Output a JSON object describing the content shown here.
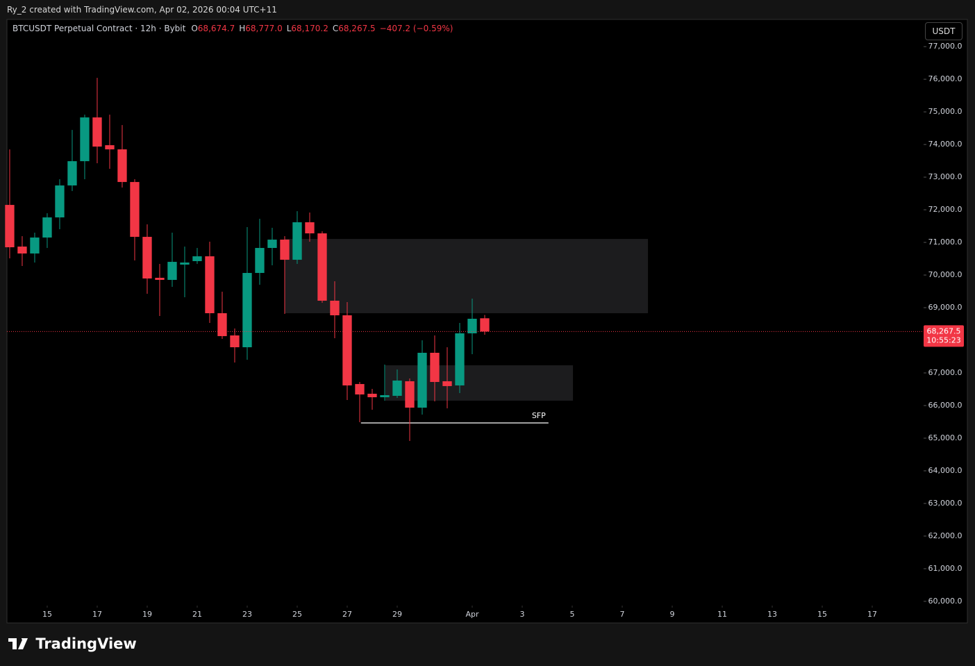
{
  "header": {
    "text": "Ry_2 created with TradingView.com, Apr 02, 2026 00:04 UTC+11"
  },
  "footer": {
    "logo": "TradingView"
  },
  "chart_data": {
    "type": "candlestick",
    "title": "BTCUSDT Perpetual Contract · 12h · Bybit",
    "ohlc_keys": [
      "O",
      "H",
      "L",
      "C"
    ],
    "ohlc_value_labels": [
      "68,674.7",
      "68,777.0",
      "68,170.2",
      "68,267.5"
    ],
    "change_label": "−407.2 (−0.59%)",
    "currency": "USDT",
    "categories": [
      null,
      null,
      null,
      null,
      null,
      null,
      null,
      null,
      null,
      null,
      null,
      null,
      null,
      null,
      null,
      null,
      null,
      null,
      null,
      null,
      null,
      null,
      null,
      null,
      null,
      null,
      null,
      null,
      null,
      null,
      null,
      null,
      null,
      null,
      null,
      null,
      null,
      null,
      null
    ],
    "open": [
      72149,
      70872,
      70660,
      71149,
      71766,
      72745,
      73489,
      74830,
      73979,
      73851,
      72851,
      71170,
      69915,
      69851,
      70319,
      70426,
      70574,
      68830,
      68149,
      67787,
      70064,
      70830,
      71085,
      70468,
      71617,
      71277,
      69213,
      68766,
      66660,
      66362,
      66255,
      66298,
      66745,
      65936,
      67617,
      66745,
      66617,
      68213,
      68674.7
    ],
    "high": [
      73851,
      71191,
      71298,
      71894,
      72936,
      74447,
      74915,
      76043,
      74915,
      74596,
      72936,
      71553,
      70340,
      71298,
      70872,
      70830,
      71021,
      69489,
      68362,
      71468,
      71723,
      71447,
      71191,
      71957,
      71915,
      71340,
      69809,
      69170,
      66723,
      66511,
      67255,
      67106,
      66830,
      68000,
      68149,
      67787,
      68532,
      69277,
      68777.0
    ],
    "low": [
      70511,
      70277,
      70383,
      70830,
      71404,
      72574,
      72936,
      73426,
      73255,
      72681,
      70447,
      69426,
      68745,
      69638,
      69319,
      70340,
      68532,
      68043,
      67319,
      67404,
      69702,
      70298,
      68808,
      70340,
      71021,
      69149,
      68064,
      66170,
      65489,
      65872,
      66149,
      66234,
      64915,
      65723,
      66128,
      65915,
      66383,
      67574,
      68170.2
    ],
    "close": [
      70851,
      70660,
      71149,
      71766,
      72745,
      73489,
      74830,
      73936,
      73851,
      72851,
      71170,
      69894,
      69851,
      70404,
      70383,
      70574,
      68830,
      68128,
      67787,
      70064,
      70830,
      71085,
      70468,
      71617,
      71277,
      69213,
      68766,
      66617,
      66340,
      66255,
      66319,
      66766,
      65936,
      67617,
      66723,
      66596,
      68213,
      68660,
      68267.5
    ],
    "up_color": "#089981",
    "down_color": "#f23645",
    "ylim": [
      59870,
      77790
    ],
    "yticks": [
      {
        "value": 60000,
        "label": "60,000.0"
      },
      {
        "value": 61000,
        "label": "61,000.0"
      },
      {
        "value": 62000,
        "label": "62,000.0"
      },
      {
        "value": 63000,
        "label": "63,000.0"
      },
      {
        "value": 64000,
        "label": "64,000.0"
      },
      {
        "value": 65000,
        "label": "65,000.0"
      },
      {
        "value": 66000,
        "label": "66,000.0"
      },
      {
        "value": 67000,
        "label": "67,000.0"
      },
      {
        "value": 68000,
        "label": "68,000.0"
      },
      {
        "value": 69000,
        "label": "69,000.0"
      },
      {
        "value": 70000,
        "label": "70,000.0"
      },
      {
        "value": 71000,
        "label": "71,000.0"
      },
      {
        "value": 72000,
        "label": "72,000.0"
      },
      {
        "value": 73000,
        "label": "73,000.0"
      },
      {
        "value": 74000,
        "label": "74,000.0"
      },
      {
        "value": 75000,
        "label": "75,000.0"
      },
      {
        "value": 76000,
        "label": "76,000.0"
      },
      {
        "value": 77000,
        "label": "77,000.0"
      }
    ],
    "xlim": [
      -0.22,
      73
    ],
    "xticks": [
      {
        "value": 3,
        "label": "15"
      },
      {
        "value": 7,
        "label": "17"
      },
      {
        "value": 11,
        "label": "19"
      },
      {
        "value": 15,
        "label": "21"
      },
      {
        "value": 19,
        "label": "23"
      },
      {
        "value": 23,
        "label": "25"
      },
      {
        "value": 27,
        "label": "27"
      },
      {
        "value": 31,
        "label": "29"
      },
      {
        "value": 37,
        "label": "Apr"
      },
      {
        "value": 41,
        "label": "3"
      },
      {
        "value": 45,
        "label": "5"
      },
      {
        "value": 49,
        "label": "7"
      },
      {
        "value": 53,
        "label": "9"
      },
      {
        "value": 57,
        "label": "11"
      },
      {
        "value": 61,
        "label": "13"
      },
      {
        "value": 65,
        "label": "15"
      },
      {
        "value": 69,
        "label": "17"
      }
    ],
    "grid": false,
    "zones": [
      {
        "x": [
          22,
          51.06
        ],
        "y": [
          68830,
          71106
        ]
      },
      {
        "x": [
          30.05,
          45.06
        ],
        "y": [
          66149,
          67234
        ]
      }
    ],
    "annotations": [
      {
        "text": "SFP",
        "x": [
          28.1,
          43.1
        ],
        "y": 65468
      }
    ],
    "last_price": {
      "value": 68267.5,
      "label": "68,267.5",
      "countdown": "10:55:23",
      "color": "#f23645"
    }
  }
}
